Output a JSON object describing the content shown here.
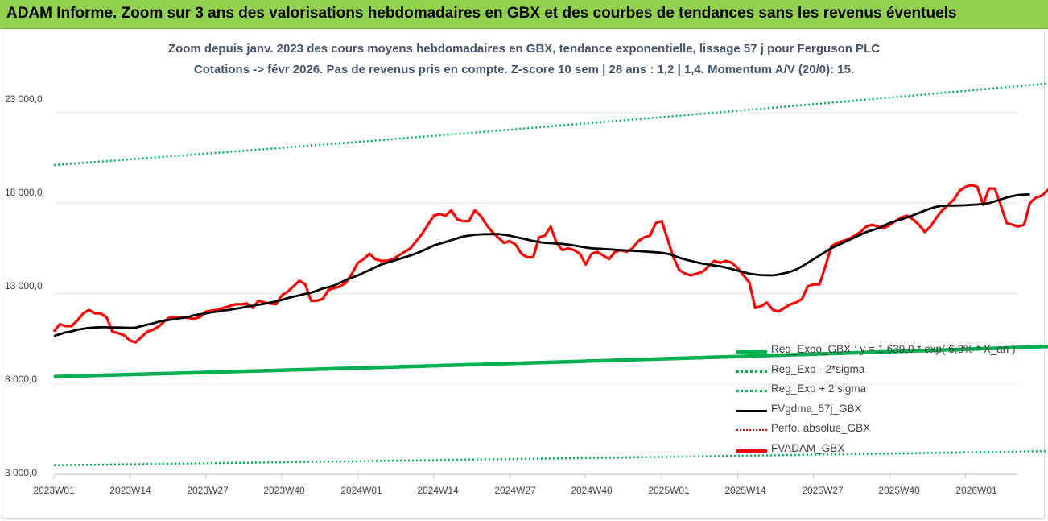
{
  "banner": {
    "title": "ADAM Informe. Zoom sur 3 ans des valorisations hebdomadaires en GBX et des courbes de tendances sans les revenus éventuels"
  },
  "colors": {
    "banner": "#92d050",
    "title_text": "#44546a",
    "trend": "#00b050",
    "price": "#ff0000",
    "gdma": "#000000",
    "perfo": "#c00000"
  },
  "chart_data": {
    "type": "line",
    "title_line1": "Zoom depuis janv. 2023 des cours moyens hebdomadaires en GBX, tendance exponentielle, lissage 57 j pour Ferguson PLC",
    "title_line2": "Cotations -> févr 2026. Pas de revenus pris en compte. Z-score 10 sem | 28 ans : 1,2 | 1,4. Momentum A/V (20/0): 15.",
    "ylim": [
      3000,
      25000
    ],
    "yticks": [
      "3 000,0",
      "8 000,0",
      "13 000,0",
      "18 000,0",
      "23 000,0"
    ],
    "ytick_values": [
      3000,
      8000,
      13000,
      18000,
      23000
    ],
    "xticks": [
      "2023W01",
      "2023W14",
      "2023W27",
      "2023W40",
      "2024W01",
      "2024W14",
      "2024W27",
      "2024W40",
      "2025W01",
      "2025W14",
      "2025W27",
      "2025W40",
      "2026W01"
    ],
    "xtick_weeks": [
      0,
      13,
      26,
      39,
      52,
      65,
      78,
      91,
      104,
      117,
      130,
      143,
      156
    ],
    "x_range_weeks": [
      0,
      165
    ],
    "legend_position": "right",
    "series": [
      {
        "name": "Reg_Expo_GBX : y = 1 639,0 * exp( 6,3% * X_an )",
        "style": "solid-thick",
        "color": "#00b050",
        "start": 8400,
        "end": 10100
      },
      {
        "name": "Reg_Exp - 2*sigma",
        "style": "dotted",
        "color": "#00b050",
        "start": 3500,
        "end": 4300
      },
      {
        "name": "Reg_Exp + 2 sigma",
        "style": "dotted",
        "color": "#00b050",
        "start": 20100,
        "end": 24700
      },
      {
        "name": "FVgdma_57j_GBX",
        "style": "solid",
        "color": "#000000",
        "values": [
          10650,
          10750,
          10850,
          10900,
          11000,
          11050,
          11100,
          11120,
          11130,
          11130,
          11120,
          11120,
          11110,
          11100,
          11110,
          11200,
          11280,
          11350,
          11450,
          11500,
          11550,
          11600,
          11650,
          11700,
          11800,
          11850,
          11900,
          11960,
          12000,
          12060,
          12100,
          12150,
          12200,
          12280,
          12320,
          12380,
          12430,
          12500,
          12560,
          12640,
          12750,
          12830,
          12900,
          12980,
          13050,
          13150,
          13280,
          13350,
          13450,
          13600,
          13750,
          13880,
          14000,
          14150,
          14300,
          14450,
          14600,
          14700,
          14800,
          14900,
          15000,
          15100,
          15220,
          15350,
          15500,
          15650,
          15750,
          15850,
          15950,
          16050,
          16150,
          16200,
          16250,
          16270,
          16280,
          16280,
          16290,
          16250,
          16200,
          16120,
          16050,
          15980,
          15900,
          15850,
          15800,
          15780,
          15760,
          15740,
          15700,
          15650,
          15600,
          15540,
          15500,
          15480,
          15460,
          15440,
          15420,
          15400,
          15380,
          15360,
          15340,
          15320,
          15300,
          15280,
          15250,
          15200,
          15100,
          14980,
          14880,
          14800,
          14720,
          14650,
          14600,
          14550,
          14500,
          14430,
          14350,
          14260,
          14180,
          14100,
          14050,
          14020,
          14010,
          14000,
          14050,
          14120,
          14200,
          14330,
          14500,
          14700,
          14900,
          15100,
          15300,
          15500,
          15650,
          15800,
          15950,
          16100,
          16250,
          16400,
          16500,
          16600,
          16750,
          16900,
          17000,
          17100,
          17200,
          17320,
          17450,
          17580,
          17700,
          17800,
          17850,
          17860,
          17860,
          17870,
          17880,
          17900,
          17920,
          17950,
          18000,
          18100,
          18200,
          18300,
          18380,
          18450,
          18470,
          18480
        ]
      },
      {
        "name": "Perfo. absolue_GBX",
        "style": "dotted",
        "color": "#c00000"
      },
      {
        "name": "FVADAM_GBX",
        "style": "solid-thick",
        "color": "#ff0000",
        "values": [
          10900,
          11300,
          11200,
          11200,
          11500,
          11900,
          12100,
          11900,
          11900,
          11700,
          10900,
          10800,
          10700,
          10400,
          10300,
          10600,
          10900,
          11000,
          11200,
          11500,
          11700,
          11700,
          11700,
          11650,
          11600,
          11700,
          12000,
          12050,
          12100,
          12200,
          12300,
          12400,
          12400,
          12450,
          12200,
          12600,
          12500,
          12450,
          12400,
          12900,
          13100,
          13400,
          13700,
          13500,
          12600,
          12600,
          12700,
          13200,
          13300,
          13400,
          13600,
          14100,
          14700,
          14900,
          15200,
          14900,
          14800,
          14800,
          14900,
          15100,
          15300,
          15500,
          15900,
          16300,
          16800,
          17300,
          17400,
          17300,
          17600,
          17100,
          17000,
          17000,
          17600,
          17300,
          16800,
          16400,
          16100,
          15800,
          15900,
          15700,
          15200,
          15000,
          15000,
          16100,
          16200,
          16700,
          15800,
          15400,
          15500,
          15400,
          15200,
          14600,
          15200,
          15300,
          15100,
          14900,
          15300,
          15400,
          15300,
          15500,
          15900,
          16100,
          16200,
          16900,
          17000,
          16000,
          15000,
          14300,
          14100,
          14000,
          14100,
          14200,
          14500,
          14800,
          14700,
          14800,
          14700,
          14400,
          14000,
          13600,
          12200,
          12300,
          12500,
          12100,
          12000,
          12200,
          12400,
          12500,
          12700,
          13400,
          13500,
          13500,
          14500,
          15600,
          15800,
          15900,
          16000,
          16200,
          16400,
          16700,
          16800,
          16700,
          16600,
          16800,
          17000,
          17200,
          17300,
          17100,
          16800,
          16400,
          16700,
          17200,
          17600,
          17900,
          18200,
          18700,
          18900,
          19000,
          18900,
          17900,
          18800,
          18800,
          17900,
          16900,
          16800,
          16700,
          16800,
          18000,
          18300,
          18400,
          18700,
          19100,
          18900,
          18700
        ]
      }
    ]
  }
}
